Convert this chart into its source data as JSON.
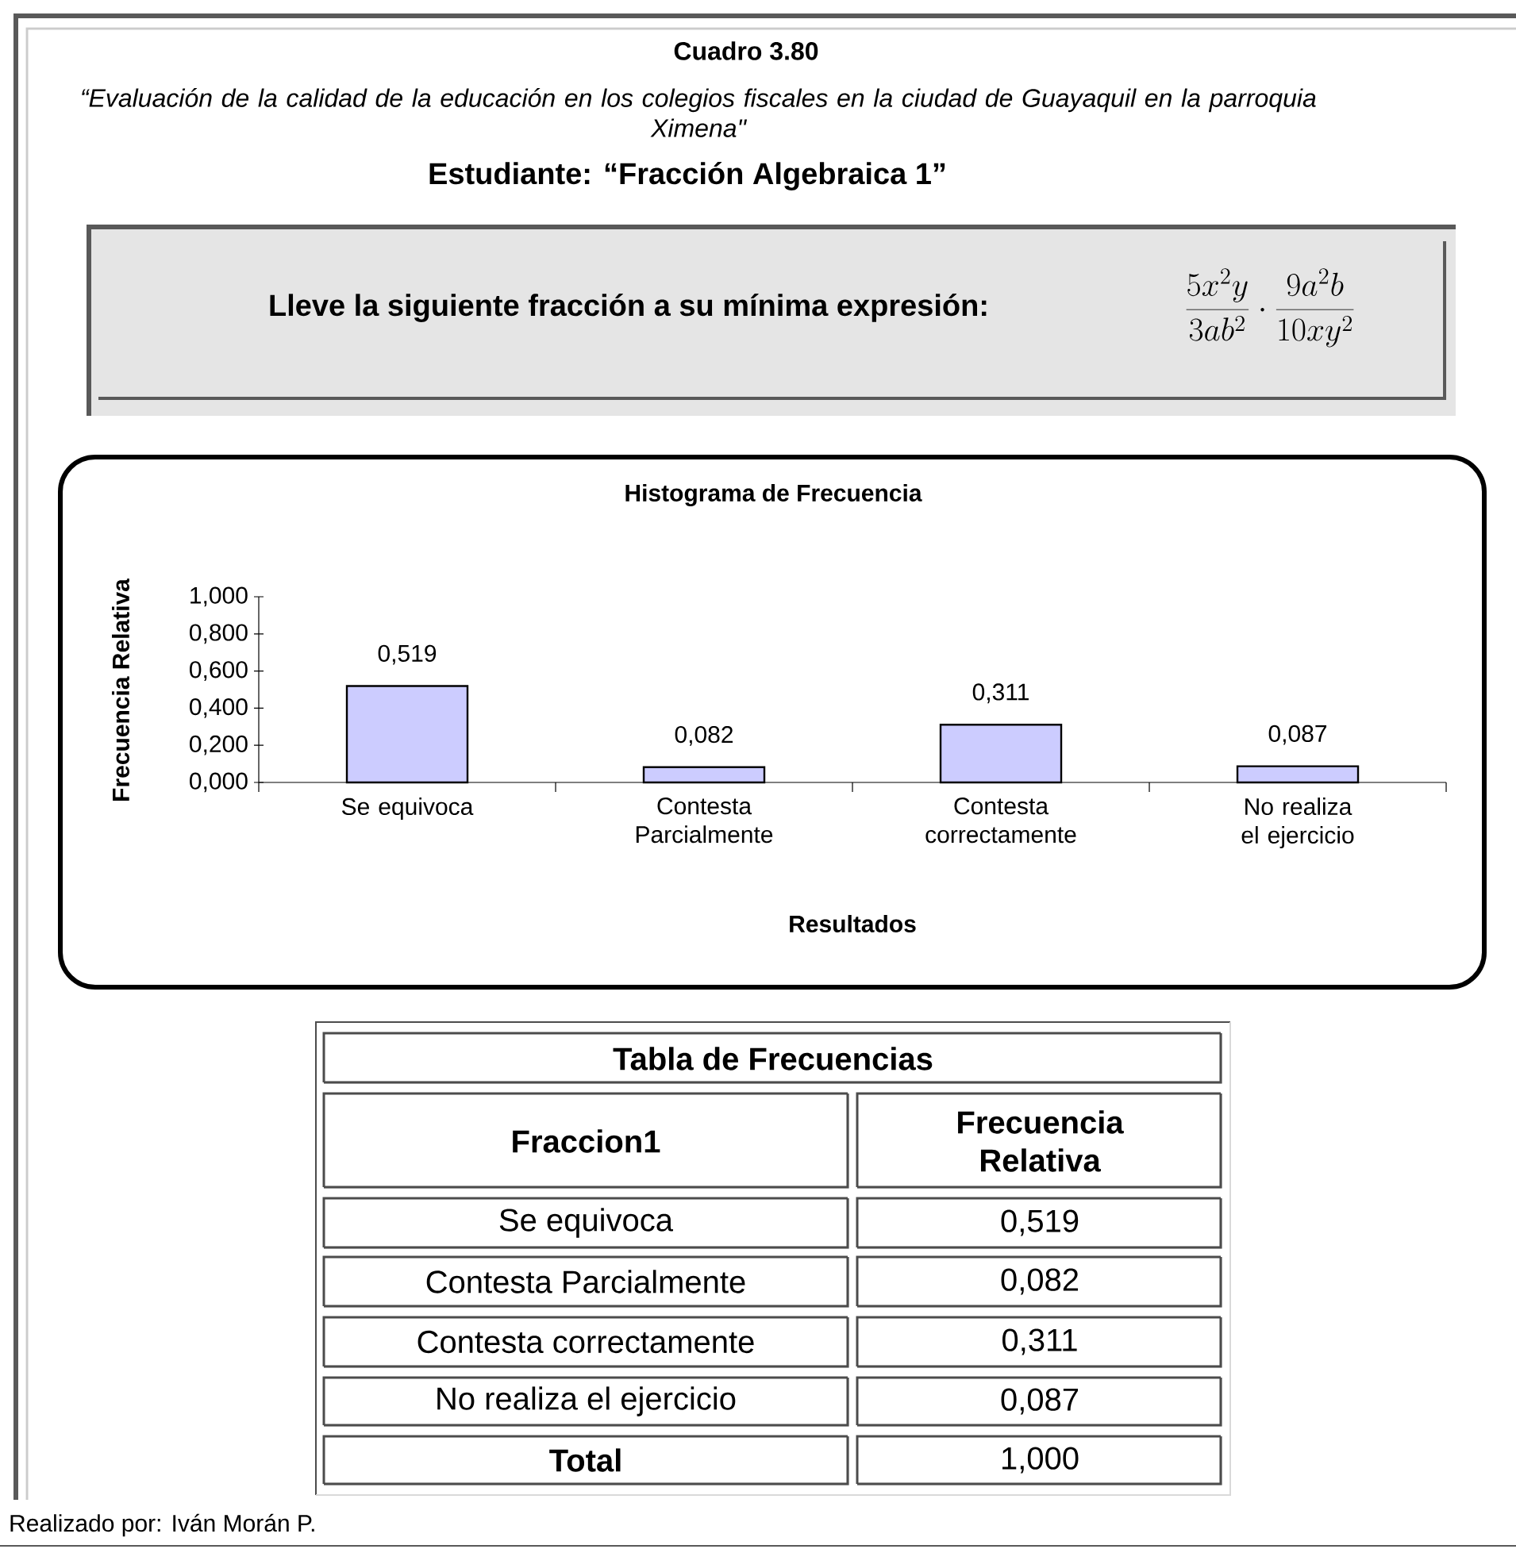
{
  "chart_data": {
    "type": "bar",
    "title": "Histograma de Frecuencia",
    "xlabel": "Resultados",
    "ylabel": "Frecuencia Relativa",
    "categories": [
      "Se equivoca",
      "Contesta Parcialmente",
      "Contesta correctamente",
      "No realiza el ejercicio"
    ],
    "values": [
      0.519,
      0.082,
      0.311,
      0.087
    ],
    "value_labels": [
      "0,519",
      "0,082",
      "0,311",
      "0,087"
    ],
    "color": "#ccccff",
    "ylim": [
      0,
      1
    ],
    "yticks": [
      {
        "value": 0,
        "label": "0,000"
      },
      {
        "value": 0.2,
        "label": "0,200"
      },
      {
        "value": 0.4,
        "label": "0,400"
      },
      {
        "value": 0.6,
        "label": "0,600"
      },
      {
        "value": 0.8,
        "label": "0,800"
      },
      {
        "value": 1,
        "label": "1,000"
      }
    ],
    "annotations": [
      "Cuadro 3.80",
      "“Evaluación de la calidad de la educación en los colegios fiscales en la ciudad de Guayaquil en la parroquia Ximena\"",
      "Estudiante: “Fracción Algebraica 1”",
      "Lleve la siguiente fracción a su mínima expresión:",
      "\\frac{5x^{2}y}{3ab^{2}}\\cdot\\frac{9a^{2}b}{10xy^{2}}",
      "Tabla de Frecuencias",
      "Fraccion1",
      "Frecuencia Relativa",
      "Total",
      "1,000",
      "Realizado por: Iván Morán P."
    ]
  }
}
